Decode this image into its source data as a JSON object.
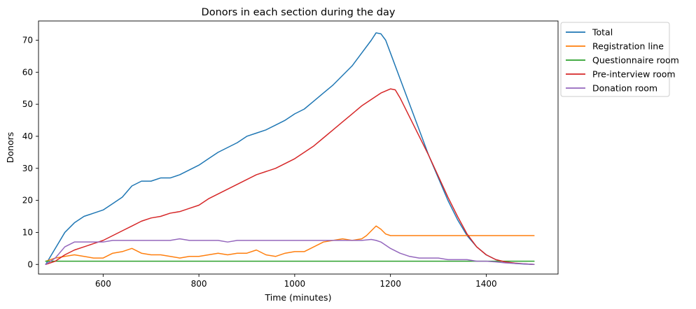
{
  "chart_data": {
    "type": "line",
    "title": "Donors in each section during the day",
    "xlabel": "Time (minutes)",
    "ylabel": "Donors",
    "xlim": [
      465,
      1550
    ],
    "ylim": [
      -3,
      76
    ],
    "xticks": [
      600,
      800,
      1000,
      1200,
      1400
    ],
    "yticks": [
      0,
      10,
      20,
      30,
      40,
      50,
      60,
      70
    ],
    "grid": false,
    "legend_position": "outside-top-right",
    "series": [
      {
        "name": "Total",
        "color": "#1f77b4",
        "x": [
          480,
          500,
          520,
          540,
          560,
          580,
          600,
          620,
          640,
          660,
          680,
          700,
          720,
          740,
          760,
          780,
          800,
          820,
          840,
          860,
          880,
          900,
          920,
          940,
          960,
          980,
          1000,
          1020,
          1040,
          1060,
          1080,
          1100,
          1120,
          1140,
          1160,
          1170,
          1180,
          1190,
          1200,
          1220,
          1240,
          1260,
          1280,
          1300,
          1320,
          1340,
          1360,
          1380,
          1400,
          1420,
          1440,
          1460,
          1480,
          1500
        ],
        "y": [
          0,
          5,
          10,
          13,
          15,
          16,
          17,
          19,
          21,
          24.5,
          26,
          26,
          27,
          27,
          28,
          29.5,
          31,
          33,
          35,
          36.5,
          38,
          40,
          41,
          42,
          43.5,
          45,
          47,
          48.5,
          51,
          53.5,
          56,
          59,
          62,
          66,
          70,
          72.3,
          72,
          70,
          66,
          58,
          50,
          42,
          34,
          27,
          20,
          14,
          9,
          5.5,
          3,
          1.5,
          0.7,
          0.3,
          0.1,
          0
        ]
      },
      {
        "name": "Registration line",
        "color": "#ff7f0e",
        "x": [
          480,
          500,
          520,
          540,
          560,
          580,
          600,
          620,
          640,
          660,
          680,
          700,
          720,
          740,
          760,
          780,
          800,
          820,
          840,
          860,
          880,
          900,
          920,
          940,
          960,
          980,
          1000,
          1020,
          1040,
          1060,
          1080,
          1100,
          1120,
          1140,
          1150,
          1160,
          1170,
          1180,
          1190,
          1200,
          1300,
          1400,
          1500
        ],
        "y": [
          1,
          2,
          2.5,
          3,
          2.5,
          2,
          2,
          3.5,
          4,
          5,
          3.5,
          3,
          3,
          2.5,
          2,
          2.5,
          2.5,
          3,
          3.5,
          3,
          3.5,
          3.5,
          4.5,
          3,
          2.5,
          3.5,
          4,
          4,
          5.5,
          7,
          7.5,
          8,
          7.5,
          8,
          9,
          10.5,
          12,
          11,
          9.5,
          9,
          9,
          9,
          9
        ]
      },
      {
        "name": "Questionnaire room",
        "color": "#2ca02c",
        "x": [
          480,
          500,
          600,
          700,
          800,
          900,
          1000,
          1100,
          1200,
          1300,
          1400,
          1500
        ],
        "y": [
          1,
          1,
          1,
          1,
          1,
          1,
          1,
          1,
          1,
          1,
          1,
          1
        ]
      },
      {
        "name": "Pre-interview room",
        "color": "#d62728",
        "x": [
          480,
          500,
          520,
          540,
          560,
          580,
          600,
          620,
          640,
          660,
          680,
          700,
          720,
          740,
          760,
          780,
          800,
          820,
          840,
          860,
          880,
          900,
          920,
          940,
          960,
          980,
          1000,
          1020,
          1040,
          1060,
          1080,
          1100,
          1120,
          1140,
          1160,
          1180,
          1200,
          1210,
          1220,
          1240,
          1260,
          1280,
          1300,
          1320,
          1340,
          1360,
          1380,
          1400,
          1420,
          1440,
          1460,
          1480,
          1500
        ],
        "y": [
          0,
          1,
          3,
          4.5,
          5.5,
          6.5,
          7.5,
          9,
          10.5,
          12,
          13.5,
          14.5,
          15,
          16,
          16.5,
          17.5,
          18.5,
          20.5,
          22,
          23.5,
          25,
          26.5,
          28,
          29,
          30,
          31.5,
          33,
          35,
          37,
          39.5,
          42,
          44.5,
          47,
          49.5,
          51.5,
          53.5,
          54.8,
          54.5,
          52,
          46,
          40,
          34,
          27.5,
          21,
          15,
          9.5,
          5.5,
          3,
          1.5,
          0.8,
          0.4,
          0.2,
          0
        ]
      },
      {
        "name": "Donation room",
        "color": "#9467bd",
        "x": [
          480,
          500,
          520,
          540,
          560,
          580,
          600,
          620,
          640,
          660,
          680,
          700,
          720,
          740,
          760,
          780,
          800,
          820,
          840,
          860,
          880,
          900,
          920,
          940,
          960,
          980,
          1000,
          1020,
          1040,
          1060,
          1080,
          1100,
          1120,
          1140,
          1160,
          1170,
          1180,
          1190,
          1200,
          1220,
          1240,
          1260,
          1280,
          1300,
          1320,
          1340,
          1360,
          1380,
          1400,
          1420,
          1440,
          1460,
          1480,
          1500
        ],
        "y": [
          0,
          2,
          5.5,
          7,
          7,
          7,
          7,
          7.5,
          7.5,
          7.5,
          7.5,
          7.5,
          7.5,
          7.5,
          8,
          7.5,
          7.5,
          7.5,
          7.5,
          7,
          7.5,
          7.5,
          7.5,
          7.5,
          7.5,
          7.5,
          7.5,
          7.5,
          7.5,
          7.5,
          7.5,
          7.5,
          7.5,
          7.5,
          7.8,
          7.5,
          7,
          6,
          5,
          3.5,
          2.5,
          2,
          2,
          2,
          1.5,
          1.5,
          1.5,
          1,
          1,
          0.8,
          0.5,
          0.3,
          0.2,
          0
        ]
      }
    ]
  }
}
